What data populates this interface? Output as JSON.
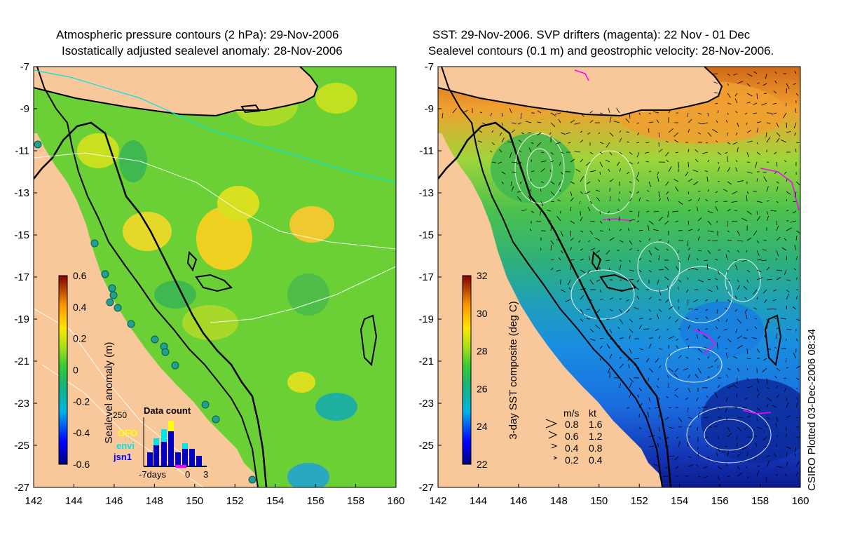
{
  "left_panel": {
    "title_line1": "Atmospheric pressure contours (2 hPa): 29-Nov-2006",
    "title_line2": "Isostatically adjusted sealevel anomaly: 28-Nov-2006",
    "colorbar_label": "Sealevel anomaly (m)",
    "colorbar_ticks": [
      "0.6",
      "0.4",
      "0.2",
      "0",
      "-0.2",
      "-0.4",
      "-0.6"
    ],
    "inset": {
      "title": "Data count",
      "max_label": "250",
      "legend": [
        {
          "name": "GFO",
          "color": "#ffff00"
        },
        {
          "name": "envi",
          "color": "#00e5e5"
        },
        {
          "name": "jsn1",
          "color": "#0000ff"
        }
      ],
      "x_labels": [
        "-7days",
        "0",
        "3"
      ]
    }
  },
  "right_panel": {
    "title_line1": "SST: 29-Nov-2006. SVP drifters (magenta): 22 Nov - 01 Dec",
    "title_line2": "Sealevel contours (0.1 m) and geostrophic velocity: 28-Nov-2006.",
    "colorbar_label": "3-day SST composite (deg C)",
    "colorbar_ticks": [
      "32",
      "30",
      "28",
      "26",
      "24",
      "22"
    ],
    "speed_header": [
      "m/s",
      "kt"
    ],
    "speed_legend": [
      {
        "ms": "0.8",
        "kt": "1.6"
      },
      {
        "ms": "0.6",
        "kt": "1.2"
      },
      {
        "ms": "0.4",
        "kt": "0.8"
      },
      {
        "ms": "0.2",
        "kt": "0.4"
      }
    ]
  },
  "axes": {
    "lat_ticks": [
      "-7",
      "-9",
      "-11",
      "-13",
      "-15",
      "-17",
      "-19",
      "-21",
      "-23",
      "-25",
      "-27"
    ],
    "lon_ticks": [
      "142",
      "144",
      "146",
      "148",
      "150",
      "152",
      "154",
      "156",
      "158",
      "160"
    ]
  },
  "credit": "CSIRO Plotted 03-Dec-2006 08:34",
  "colors": {
    "land": "#f9c89a",
    "coast": "#000000",
    "sla_dominant": "#66cc33",
    "sst_warm": "#e07a20",
    "sst_cool": "#1a5fd0"
  }
}
